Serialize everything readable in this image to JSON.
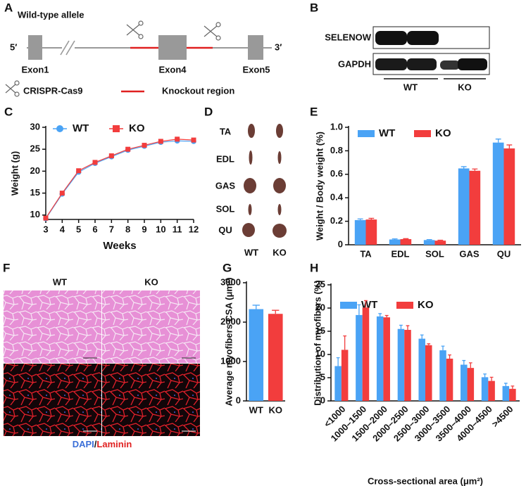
{
  "panel_labels": [
    "A",
    "B",
    "C",
    "D",
    "E",
    "F",
    "G",
    "H"
  ],
  "diagram_a": {
    "title": "Wild-type allele",
    "left_end": "5′",
    "right_end": "3′",
    "exons": [
      "Exon1",
      "Exon4",
      "Exon5"
    ],
    "legend": [
      "CRISPR-Cas9",
      "Knockout region"
    ]
  },
  "blot_b": {
    "rows": [
      "SELENOW",
      "GAPDH"
    ],
    "groups": [
      "WT",
      "KO"
    ]
  },
  "photo_d": {
    "muscles": [
      "TA",
      "EDL",
      "GAS",
      "SOL",
      "QU"
    ],
    "groups": [
      "WT",
      "KO"
    ]
  },
  "micrograph_f": {
    "groups": [
      "WT",
      "KO"
    ],
    "stain_blue": "DAPI",
    "separator": "/",
    "stain_red": "Laminin"
  },
  "chart_data": [
    {
      "type": "line",
      "x_label": "Weeks",
      "y_label": "Weight (g)",
      "legend": "top-left",
      "x": [
        3,
        4,
        5,
        6,
        7,
        8,
        9,
        10,
        11,
        12
      ],
      "xlim": [
        3,
        12
      ],
      "xticks": [
        3,
        4,
        5,
        6,
        7,
        8,
        9,
        10,
        11,
        12
      ],
      "ylim": [
        9,
        30
      ],
      "yticks": [
        10,
        15,
        20,
        25,
        30
      ],
      "series": [
        {
          "name": "WT",
          "color": "#4aa3f5",
          "marker": "circle",
          "values": [
            9.2,
            14.8,
            19.8,
            21.8,
            23.3,
            24.8,
            25.7,
            26.6,
            26.9,
            26.8
          ]
        },
        {
          "name": "KO",
          "color": "#f23d3d",
          "marker": "square",
          "values": [
            9.3,
            15.0,
            20.1,
            22.0,
            23.5,
            25.0,
            25.9,
            26.8,
            27.3,
            27.1
          ]
        }
      ]
    },
    {
      "type": "bar",
      "y_label": "Weight / Body weight  (%)",
      "legend": "top-left",
      "categories": [
        "TA",
        "EDL",
        "SOL",
        "GAS",
        "QU"
      ],
      "ylim": [
        0,
        1
      ],
      "yticks": [
        0,
        0.2,
        0.4,
        0.6,
        0.8,
        {
          "value": 1,
          "label": "1.0"
        }
      ],
      "series": [
        {
          "name": "WT",
          "color": "#4aa3f5",
          "values": [
            0.21,
            0.045,
            0.04,
            0.65,
            0.87
          ],
          "errors": [
            0.01,
            0.005,
            0.004,
            0.015,
            0.03
          ]
        },
        {
          "name": "KO",
          "color": "#f23d3d",
          "values": [
            0.215,
            0.048,
            0.035,
            0.63,
            0.82
          ],
          "errors": [
            0.01,
            0.004,
            0.004,
            0.015,
            0.03
          ]
        }
      ]
    },
    {
      "type": "bar",
      "y_label": "Average myofibers CSA (μm²)",
      "categories": [
        "WT",
        "KO"
      ],
      "ylim": [
        0,
        3000
      ],
      "yticks": [
        0,
        1000,
        2000,
        3000
      ],
      "values": [
        2330,
        2210
      ],
      "errors": [
        100,
        90
      ],
      "colors": [
        "#4aa3f5",
        "#f23d3d"
      ]
    },
    {
      "type": "bar",
      "x_label": "Cross-sectional area (μm²)",
      "y_label": "Distribution of myofibers (%)",
      "legend": "top-left",
      "categories": [
        "<1000",
        "1000–1500",
        "1500–2000",
        "2000–2500",
        "2500–3000",
        "3000–3500",
        "3500–4000",
        "4000–4500",
        ">4500"
      ],
      "ylim": [
        0,
        25
      ],
      "yticks": [
        0,
        5,
        10,
        15,
        20,
        25
      ],
      "series": [
        {
          "name": "WT",
          "color": "#4aa3f5",
          "values": [
            7.5,
            18.5,
            18.2,
            15.5,
            13.4,
            10.9,
            7.8,
            5.1,
            3.2
          ],
          "errors": [
            1.8,
            2.2,
            0.6,
            0.8,
            0.8,
            0.9,
            0.9,
            0.7,
            0.6
          ]
        },
        {
          "name": "KO",
          "color": "#f23d3d",
          "values": [
            11,
            20.1,
            18.0,
            15.3,
            12.0,
            9.1,
            7.1,
            4.3,
            2.6
          ],
          "errors": [
            3,
            1.5,
            0.4,
            0.9,
            0.3,
            0.8,
            1.1,
            0.8,
            0.6
          ]
        }
      ]
    }
  ]
}
